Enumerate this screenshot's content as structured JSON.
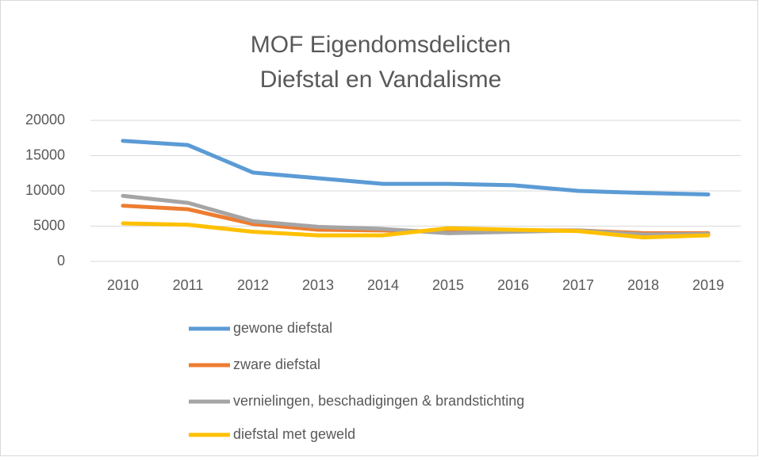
{
  "chart_data": {
    "type": "line",
    "title": [
      "MOF Eigendomsdelicten",
      "Diefstal en Vandalisme"
    ],
    "categories": [
      "2010",
      "2011",
      "2012",
      "2013",
      "2014",
      "2015",
      "2016",
      "2017",
      "2018",
      "2019"
    ],
    "series": [
      {
        "name": "gewone diefstal",
        "color": "#5b9bd5",
        "values": [
          17100,
          16500,
          12600,
          11800,
          11000,
          11000,
          10800,
          10000,
          9700,
          9500
        ]
      },
      {
        "name": "zware diefstal",
        "color": "#ed7d31",
        "values": [
          7900,
          7400,
          5300,
          4500,
          4400,
          4200,
          4400,
          4400,
          4000,
          4000
        ]
      },
      {
        "name": "vernielingen, beschadigingen & brandstichting",
        "color": "#a5a5a5",
        "values": [
          9300,
          8300,
          5700,
          4900,
          4600,
          4000,
          4200,
          4400,
          3800,
          3900
        ]
      },
      {
        "name": "diefstal met geweld",
        "color": "#ffc000",
        "values": [
          5400,
          5200,
          4200,
          3700,
          3700,
          4700,
          4500,
          4300,
          3400,
          3700
        ]
      }
    ],
    "ylim": [
      0,
      20000
    ],
    "yticks": [
      0,
      5000,
      10000,
      15000,
      20000
    ],
    "grid": true,
    "legend": "bottom"
  }
}
